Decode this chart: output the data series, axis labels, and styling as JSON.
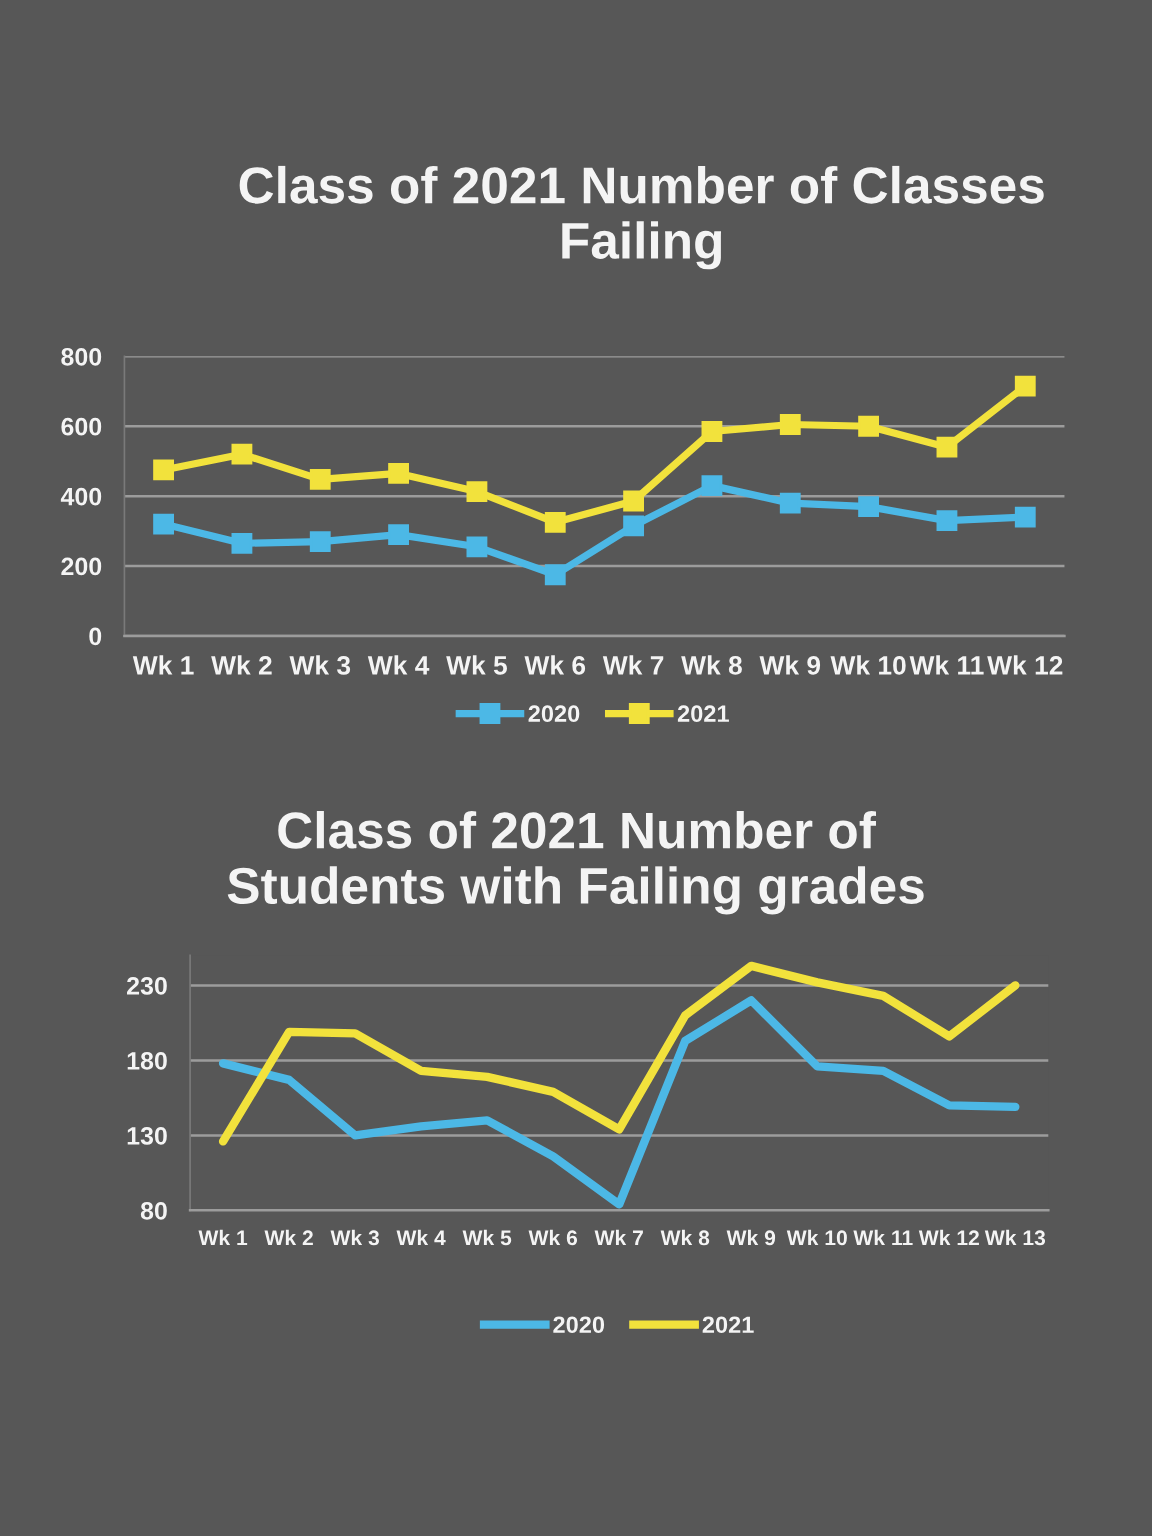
{
  "chart_data": [
    {
      "type": "line",
      "title": "Class of 2021 Number of Classes Failing",
      "categories": [
        "Wk 1",
        "Wk 2",
        "Wk 3",
        "Wk 4",
        "Wk 5",
        "Wk 6",
        "Wk 7",
        "Wk 8",
        "Wk 9",
        "Wk 10",
        "Wk 11",
        "Wk 12"
      ],
      "series": [
        {
          "name": "2020",
          "color": "#4cb8e6",
          "values": [
            320,
            265,
            270,
            290,
            255,
            175,
            315,
            430,
            380,
            370,
            330,
            340
          ]
        },
        {
          "name": "2021",
          "color": "#f2e23c",
          "values": [
            475,
            520,
            448,
            465,
            413,
            325,
            386,
            585,
            605,
            600,
            540,
            715
          ]
        }
      ],
      "ylim": [
        0,
        800
      ],
      "yticks": [
        0,
        200,
        400,
        600,
        800
      ],
      "grid": "y",
      "legend": "bottom",
      "marker": "square",
      "line_style": "solid"
    },
    {
      "type": "line",
      "title": "Class of 2021 Number of Students with Failing grades",
      "categories": [
        "Wk 1",
        "Wk 2",
        "Wk 3",
        "Wk 4",
        "Wk 5",
        "Wk 6",
        "Wk 7",
        "Wk 8",
        "Wk 9",
        "Wk 10",
        "Wk 11",
        "Wk 12",
        "Wk 13"
      ],
      "series": [
        {
          "name": "2020",
          "color": "#4cb8e6",
          "values": [
            178,
            167,
            130,
            136,
            140,
            116,
            84,
            193,
            220,
            176,
            173,
            150,
            149
          ]
        },
        {
          "name": "2021",
          "color": "#f2e23c",
          "values": [
            126,
            199,
            198,
            173,
            169,
            159,
            134,
            210,
            243,
            232,
            223,
            196,
            230
          ]
        }
      ],
      "ylim": [
        80,
        250
      ],
      "yticks": [
        80,
        130,
        180,
        230
      ],
      "grid": "y",
      "legend": "bottom",
      "line_style": "solid"
    }
  ]
}
